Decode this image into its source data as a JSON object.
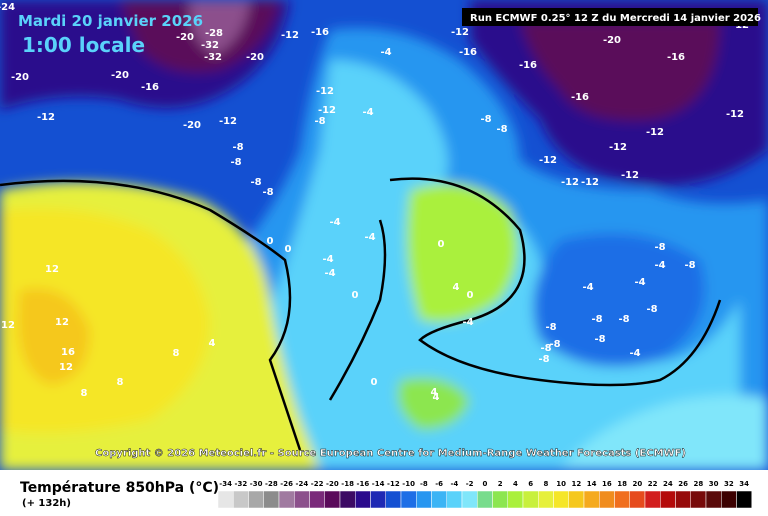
{
  "header": {
    "date": "Mardi 20 janvier 2026",
    "time": "1:00 locale",
    "run": "Run ECMWF 0.25° 12 Z du Mercredi 14 janvier 2026"
  },
  "copyright": "Copyright © 2026 Meteociel.fr - Source European Centre for Medium-Range Weather Forecasts (ECMWF)",
  "footer": {
    "title": "Température 850hPa (°C)",
    "lead": "(+ 132h)"
  },
  "scale": {
    "values": [
      -34,
      -32,
      -30,
      -28,
      -26,
      -24,
      -22,
      -20,
      -18,
      -16,
      -14,
      -12,
      -10,
      -8,
      -6,
      -4,
      -2,
      0,
      2,
      4,
      6,
      8,
      10,
      12,
      14,
      16,
      18,
      20,
      22,
      24,
      26,
      28,
      30,
      32,
      34
    ],
    "colors": [
      "#e6e6e6",
      "#c8c8c8",
      "#a8a8a8",
      "#8c8c8c",
      "#a07aa0",
      "#8c508c",
      "#7a2a7a",
      "#5a0a5a",
      "#3c0a64",
      "#2a0a8c",
      "#1e28b4",
      "#1450d2",
      "#1e6ee6",
      "#2896f0",
      "#3cb4f5",
      "#5ad2fa",
      "#80e6fa",
      "#78dc8c",
      "#8ce650",
      "#aaf03c",
      "#c8f03c",
      "#e6f03c",
      "#f5e628",
      "#f5c81e",
      "#f5aa1e",
      "#f08c1e",
      "#f06e1e",
      "#e64b1e",
      "#d21e1e",
      "#b40a0a",
      "#960a0a",
      "#780a0a",
      "#5a0a0a",
      "#3c0000",
      "#000000"
    ]
  },
  "map_labels": [
    -24,
    -20,
    -20,
    -28,
    -32,
    -32,
    -12,
    -16,
    -20,
    -12,
    -16,
    -16,
    -20,
    -16,
    -16,
    -20,
    -12,
    -16,
    -12,
    -12,
    -20,
    -12,
    -8,
    -8,
    -8,
    -8,
    -8,
    -4,
    -4,
    -8,
    -8,
    -12,
    -12,
    -12,
    -12,
    -12,
    -12,
    -12,
    -12,
    -8,
    -8,
    -4,
    -4,
    0,
    0,
    0,
    -4,
    -4,
    -4,
    -4,
    0,
    4,
    4,
    0,
    -4,
    -8,
    -8,
    -8,
    -8,
    -8,
    -8,
    -4,
    -4,
    -8,
    -8,
    12,
    12,
    12,
    16,
    12,
    8,
    8,
    8,
    4,
    4,
    0
  ]
}
